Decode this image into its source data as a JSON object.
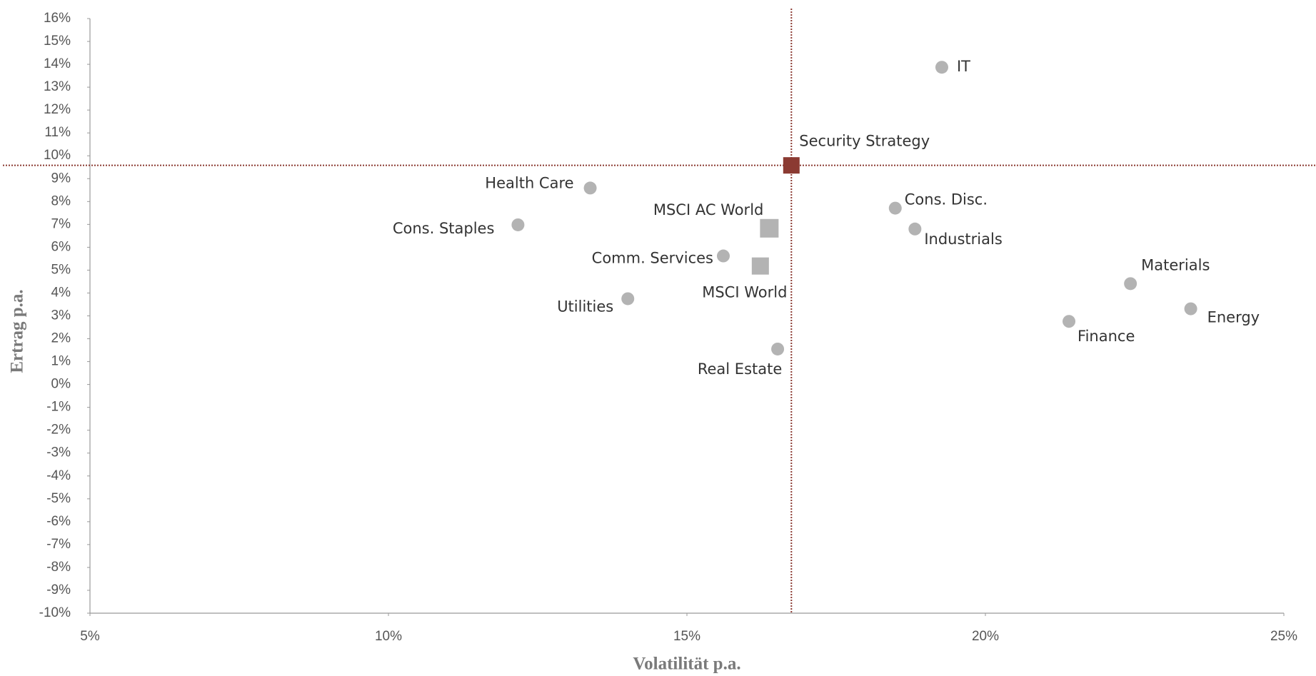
{
  "chart_data": {
    "type": "scatter",
    "x_label": "Volatilität p.a.",
    "y_label": "Ertrag p.a.",
    "xlim": [
      5,
      25
    ],
    "ylim": [
      -10,
      16
    ],
    "xticks": [
      {
        "value": 5,
        "label": "5%"
      },
      {
        "value": 10,
        "label": "10%"
      },
      {
        "value": 15,
        "label": "15%"
      },
      {
        "value": 20,
        "label": "20%"
      },
      {
        "value": 25,
        "label": "25%"
      }
    ],
    "yticks": [
      {
        "value": -10,
        "label": "-10%"
      },
      {
        "value": -9,
        "label": "-9%"
      },
      {
        "value": -8,
        "label": "-8%"
      },
      {
        "value": -7,
        "label": "-7%"
      },
      {
        "value": -6,
        "label": "-6%"
      },
      {
        "value": -5,
        "label": "-5%"
      },
      {
        "value": -4,
        "label": "-4%"
      },
      {
        "value": -3,
        "label": "-3%"
      },
      {
        "value": -2,
        "label": "-2%"
      },
      {
        "value": -1,
        "label": "-1%"
      },
      {
        "value": 0,
        "label": "0%"
      },
      {
        "value": 1,
        "label": "1%"
      },
      {
        "value": 2,
        "label": "2%"
      },
      {
        "value": 3,
        "label": "3%"
      },
      {
        "value": 4,
        "label": "4%"
      },
      {
        "value": 5,
        "label": "5%"
      },
      {
        "value": 6,
        "label": "6%"
      },
      {
        "value": 7,
        "label": "7%"
      },
      {
        "value": 8,
        "label": "8%"
      },
      {
        "value": 9,
        "label": "9%"
      },
      {
        "value": 10,
        "label": "10%"
      },
      {
        "value": 11,
        "label": "11%"
      },
      {
        "value": 12,
        "label": "12%"
      },
      {
        "value": 13,
        "label": "13%"
      },
      {
        "value": 14,
        "label": "14%"
      },
      {
        "value": 15,
        "label": "15%"
      },
      {
        "value": 16,
        "label": "16%"
      }
    ],
    "grid": false,
    "reference_point": 1,
    "points": [
      {
        "label": "IT",
        "x": 19.27,
        "y": 13.87,
        "marker": "circle",
        "color": "#b3b3b3"
      },
      {
        "label": "Security Strategy",
        "x": 16.75,
        "y": 9.58,
        "marker": "square",
        "color": "#8b3a32"
      },
      {
        "label": "Health Care",
        "x": 13.38,
        "y": 8.59,
        "marker": "circle",
        "color": "#b3b3b3"
      },
      {
        "label": "Cons. Staples",
        "x": 12.17,
        "y": 6.98,
        "marker": "circle",
        "color": "#b3b3b3"
      },
      {
        "label": "MSCI AC World",
        "x": 16.38,
        "y": 6.83,
        "marker": "square",
        "color": "#b3b3b3"
      },
      {
        "label": "Comm. Services",
        "x": 15.61,
        "y": 5.62,
        "marker": "circle",
        "color": "#b3b3b3"
      },
      {
        "label": "MSCI World",
        "x": 16.23,
        "y": 5.18,
        "marker": "square",
        "color": "#b3b3b3"
      },
      {
        "label": "Utilities",
        "x": 14.01,
        "y": 3.75,
        "marker": "circle",
        "color": "#b3b3b3"
      },
      {
        "label": "Real Estate",
        "x": 16.52,
        "y": 1.55,
        "marker": "circle",
        "color": "#b3b3b3"
      },
      {
        "label": "Cons. Disc.",
        "x": 18.49,
        "y": 7.71,
        "marker": "circle",
        "color": "#b3b3b3"
      },
      {
        "label": "Industrials",
        "x": 18.82,
        "y": 6.8,
        "marker": "circle",
        "color": "#b3b3b3"
      },
      {
        "label": "Materials",
        "x": 22.43,
        "y": 4.41,
        "marker": "circle",
        "color": "#b3b3b3"
      },
      {
        "label": "Energy",
        "x": 23.44,
        "y": 3.31,
        "marker": "circle",
        "color": "#b3b3b3"
      },
      {
        "label": "Finance",
        "x": 21.4,
        "y": 2.76,
        "marker": "circle",
        "color": "#b3b3b3"
      }
    ]
  }
}
